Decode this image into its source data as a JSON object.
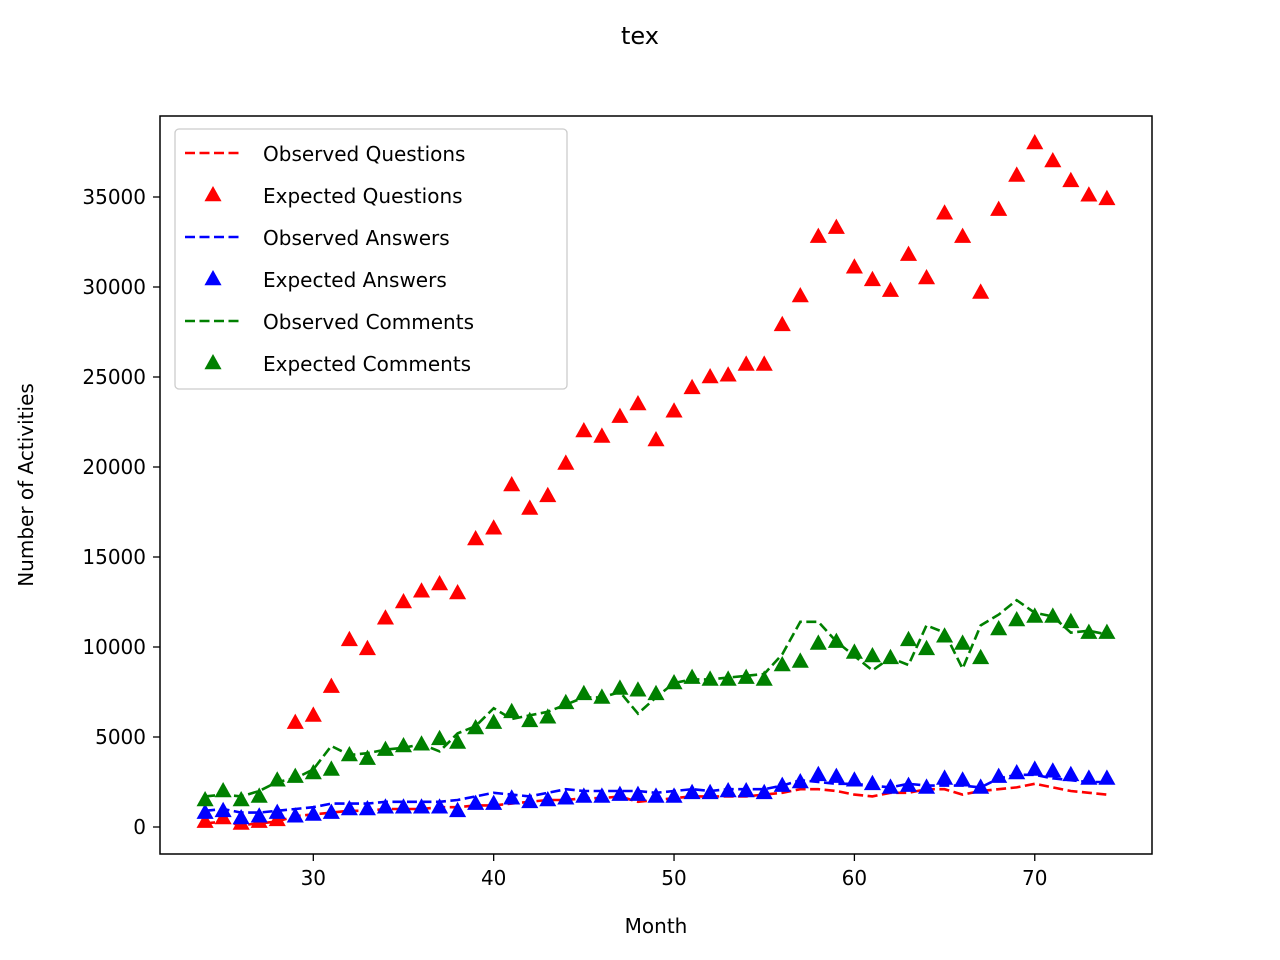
{
  "chart_data": {
    "type": "line",
    "title": "tex",
    "xlabel": "Month",
    "ylabel": "Number of Activities",
    "xlim": [
      21.5,
      76.5
    ],
    "ylim": [
      -1500,
      39500
    ],
    "xticks": [
      30,
      40,
      50,
      60,
      70
    ],
    "yticks": [
      0,
      5000,
      10000,
      15000,
      20000,
      25000,
      30000,
      35000
    ],
    "legend_position": "upper left",
    "grid": false,
    "x": [
      24,
      25,
      26,
      27,
      28,
      29,
      30,
      31,
      32,
      33,
      34,
      35,
      36,
      37,
      38,
      39,
      40,
      41,
      42,
      43,
      44,
      45,
      46,
      47,
      48,
      49,
      50,
      51,
      52,
      53,
      54,
      55,
      56,
      57,
      58,
      59,
      60,
      61,
      62,
      63,
      64,
      65,
      66,
      67,
      68,
      69,
      70,
      71,
      72,
      73,
      74
    ],
    "series": [
      {
        "name": "Observed Questions",
        "style": "dashed-line",
        "color": "#ff0000",
        "values": [
          200,
          300,
          100,
          200,
          300,
          600,
          700,
          800,
          900,
          900,
          1000,
          1000,
          1000,
          1100,
          1100,
          1200,
          1200,
          1300,
          1400,
          1500,
          1500,
          1600,
          1600,
          1700,
          1400,
          1500,
          1600,
          1700,
          1700,
          1700,
          1700,
          1800,
          1900,
          2100,
          2100,
          2000,
          1800,
          1700,
          1900,
          1900,
          2100,
          2100,
          1800,
          2000,
          2100,
          2200,
          2400,
          2200,
          2000,
          1900,
          1800
        ]
      },
      {
        "name": "Expected Questions",
        "style": "triangle-marker",
        "color": "#ff0000",
        "values": [
          300,
          500,
          200,
          300,
          400,
          5800,
          6200,
          7800,
          10400,
          9900,
          11600,
          12500,
          13100,
          13500,
          13000,
          16000,
          16600,
          19000,
          17700,
          18400,
          20200,
          22000,
          21700,
          22800,
          23500,
          21500,
          23100,
          24400,
          25000,
          25100,
          25700,
          25700,
          27900,
          29500,
          32800,
          33300,
          31100,
          30400,
          29800,
          31800,
          30500,
          34100,
          32800,
          29700,
          34300,
          36200,
          38000,
          37000,
          35900,
          35100,
          34900
        ]
      },
      {
        "name": "Observed Answers",
        "style": "dashed-line",
        "color": "#0000ff",
        "values": [
          900,
          1000,
          800,
          800,
          900,
          1000,
          1100,
          1300,
          1300,
          1300,
          1400,
          1400,
          1400,
          1400,
          1500,
          1700,
          1900,
          1800,
          1700,
          1900,
          2100,
          2000,
          2000,
          2000,
          2000,
          1900,
          2000,
          2100,
          2000,
          2100,
          2100,
          2100,
          2300,
          2600,
          2500,
          2400,
          2400,
          2300,
          2200,
          2400,
          2300,
          2300,
          2300,
          2200,
          2700,
          2900,
          2900,
          2700,
          2600,
          2500,
          2500
        ]
      },
      {
        "name": "Expected Answers",
        "style": "triangle-marker",
        "color": "#0000ff",
        "values": [
          800,
          900,
          500,
          600,
          800,
          600,
          700,
          800,
          1000,
          1000,
          1100,
          1100,
          1100,
          1100,
          900,
          1300,
          1300,
          1600,
          1400,
          1500,
          1600,
          1700,
          1700,
          1800,
          1800,
          1700,
          1700,
          1900,
          1900,
          2000,
          2000,
          1900,
          2300,
          2500,
          2900,
          2800,
          2600,
          2400,
          2200,
          2300,
          2200,
          2700,
          2600,
          2200,
          2800,
          3000,
          3200,
          3100,
          2900,
          2700,
          2700
        ]
      },
      {
        "name": "Observed Comments",
        "style": "dashed-line",
        "color": "#008000",
        "values": [
          1700,
          1800,
          1700,
          2000,
          2500,
          2700,
          3200,
          4500,
          4000,
          4100,
          4300,
          4400,
          4600,
          4200,
          5200,
          5600,
          6600,
          6000,
          6200,
          6400,
          6800,
          7200,
          7200,
          7500,
          6300,
          7200,
          8000,
          8200,
          8200,
          8300,
          8400,
          8500,
          9600,
          11400,
          11400,
          10300,
          9500,
          8700,
          9400,
          9000,
          11200,
          10800,
          8800,
          11200,
          11800,
          12600,
          11900,
          11700,
          10800,
          10900,
          10700
        ]
      },
      {
        "name": "Expected Comments",
        "style": "triangle-marker",
        "color": "#008000",
        "values": [
          1500,
          2000,
          1500,
          1700,
          2600,
          2800,
          3000,
          3200,
          4000,
          3800,
          4300,
          4500,
          4600,
          4900,
          4700,
          5500,
          5800,
          6400,
          5900,
          6100,
          6900,
          7400,
          7200,
          7700,
          7600,
          7400,
          8000,
          8300,
          8200,
          8200,
          8300,
          8200,
          9000,
          9200,
          10200,
          10300,
          9700,
          9500,
          9400,
          10400,
          9900,
          10600,
          10200,
          9400,
          11000,
          11500,
          11700,
          11700,
          11400,
          10800,
          10800
        ]
      }
    ]
  }
}
